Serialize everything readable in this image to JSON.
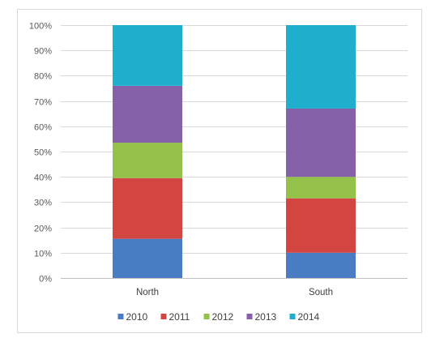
{
  "chart_data": {
    "type": "bar",
    "stacked": "percent",
    "categories": [
      "North",
      "South"
    ],
    "series": [
      {
        "name": "2010",
        "color": "#4a7cc4",
        "values": [
          15.5,
          10
        ]
      },
      {
        "name": "2011",
        "color": "#d24541",
        "values": [
          24,
          21.5
        ]
      },
      {
        "name": "2012",
        "color": "#93c14a",
        "values": [
          14,
          8.5
        ]
      },
      {
        "name": "2013",
        "color": "#8660a8",
        "values": [
          22.5,
          27
        ]
      },
      {
        "name": "2014",
        "color": "#1fafcc",
        "values": [
          24,
          33
        ]
      }
    ],
    "ylim": [
      0,
      100
    ],
    "yticks": [
      "0%",
      "10%",
      "20%",
      "30%",
      "40%",
      "50%",
      "60%",
      "70%",
      "80%",
      "90%",
      "100%"
    ],
    "grid": true,
    "legend": "bottom",
    "title": "",
    "xlabel": "",
    "ylabel": ""
  }
}
